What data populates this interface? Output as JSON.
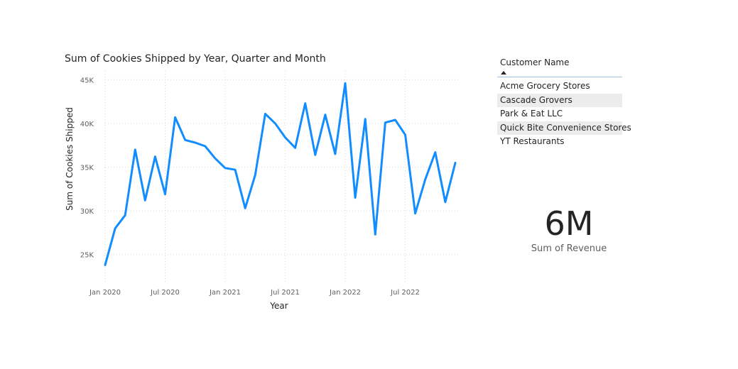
{
  "chart_data": {
    "type": "line",
    "title": "Sum of Cookies Shipped by Year, Quarter and Month",
    "xlabel": "Year",
    "ylabel": "Sum of Cookies Shipped",
    "x_tick_labels": [
      "Jan 2020",
      "Jul 2020",
      "Jan 2021",
      "Jul 2021",
      "Jan 2022",
      "Jul 2022"
    ],
    "y_tick_labels": [
      "25K",
      "30K",
      "35K",
      "40K",
      "45K"
    ],
    "y_ticks": [
      25000,
      30000,
      35000,
      40000,
      45000
    ],
    "ylim": [
      22300,
      46000
    ],
    "x_range": [
      "2020-01",
      "2022-12"
    ],
    "grid": true,
    "line_color": "#118dff",
    "series": [
      {
        "x": [
          "2020-01",
          "2020-02",
          "2020-03",
          "2020-04",
          "2020-05",
          "2020-06",
          "2020-07",
          "2020-08",
          "2020-09",
          "2020-10",
          "2020-11",
          "2020-12",
          "2021-01",
          "2021-02",
          "2021-03",
          "2021-04",
          "2021-05",
          "2021-06",
          "2021-07",
          "2021-08",
          "2021-09",
          "2021-10",
          "2021-11",
          "2021-12",
          "2022-01",
          "2022-02",
          "2022-03",
          "2022-04",
          "2022-05",
          "2022-06",
          "2022-07",
          "2022-08",
          "2022-09",
          "2022-10",
          "2022-11",
          "2022-12"
        ],
        "values": [
          23800,
          28000,
          29500,
          37000,
          31200,
          36200,
          31900,
          40700,
          38100,
          37800,
          37400,
          36000,
          34900,
          34700,
          30300,
          34100,
          41100,
          40000,
          38400,
          37200,
          42300,
          36400,
          41000,
          36500,
          44600,
          31500,
          40500,
          27300,
          40100,
          40400,
          38700,
          29700,
          33600,
          36700,
          31000,
          35500
        ]
      }
    ]
  },
  "slicer": {
    "header": "Customer Name",
    "items": [
      "Acme Grocery Stores",
      "Cascade Grovers",
      "Park & Eat LLC",
      "Quick Bite Convenience Stores",
      "YT Restaurants"
    ]
  },
  "card": {
    "value": "6M",
    "label": "Sum of Revenue"
  }
}
